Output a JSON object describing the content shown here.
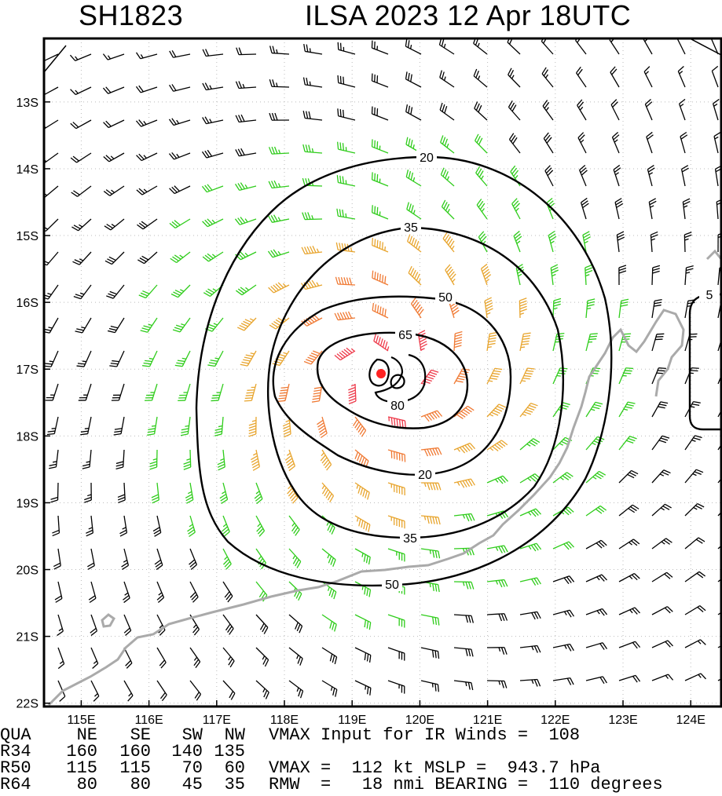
{
  "header": {
    "storm_id": "SH1823",
    "title": "ILSA 2023 12 Apr 18UTC"
  },
  "map": {
    "lon_labels": [
      "115E",
      "116E",
      "117E",
      "118E",
      "119E",
      "120E",
      "121E",
      "122E",
      "123E",
      "124E"
    ],
    "lat_labels": [
      "13S",
      "14S",
      "15S",
      "16S",
      "17S",
      "18S",
      "19S",
      "20S",
      "21S",
      "22S"
    ],
    "lon_range": [
      114.45,
      124.45
    ],
    "lat_range": [
      -12.05,
      -22.05
    ],
    "center": {
      "lon": 119.45,
      "lat": -17.05
    },
    "contour_labels": [
      "20",
      "35",
      "50",
      "65",
      "80",
      "20",
      "35",
      "50",
      "5"
    ],
    "colors": {
      "frame": "#000000",
      "contour": "#000000",
      "coastline": "#aaaaaa",
      "barb_weak": "#000000",
      "barb_34kt": "#2ecc1a",
      "barb_50kt": "#e8a52e",
      "barb_64kt": "#f07a34",
      "barb_80kt": "#ee3b4b",
      "center_dot": "#ff2222"
    }
  },
  "stats": {
    "header_row": {
      "c0": "QUA",
      "c1": "NE",
      "c2": "SE",
      "c3": "SW",
      "c4": "NW",
      "right": "VMAX Input for IR Winds =  108"
    },
    "rows": [
      {
        "c0": "R34",
        "c1": "160",
        "c2": "160",
        "c3": "140",
        "c4": "135",
        "right": ""
      },
      {
        "c0": "R50",
        "c1": "115",
        "c2": "115",
        "c3": "70",
        "c4": "60",
        "right": "VMAX =  112 kt MSLP =  943.7 hPa"
      },
      {
        "c0": "R64",
        "c1": "80",
        "c2": "80",
        "c3": "45",
        "c4": "35",
        "right": "RMW  =   18 nmi BEARING =  110 degrees"
      }
    ]
  }
}
